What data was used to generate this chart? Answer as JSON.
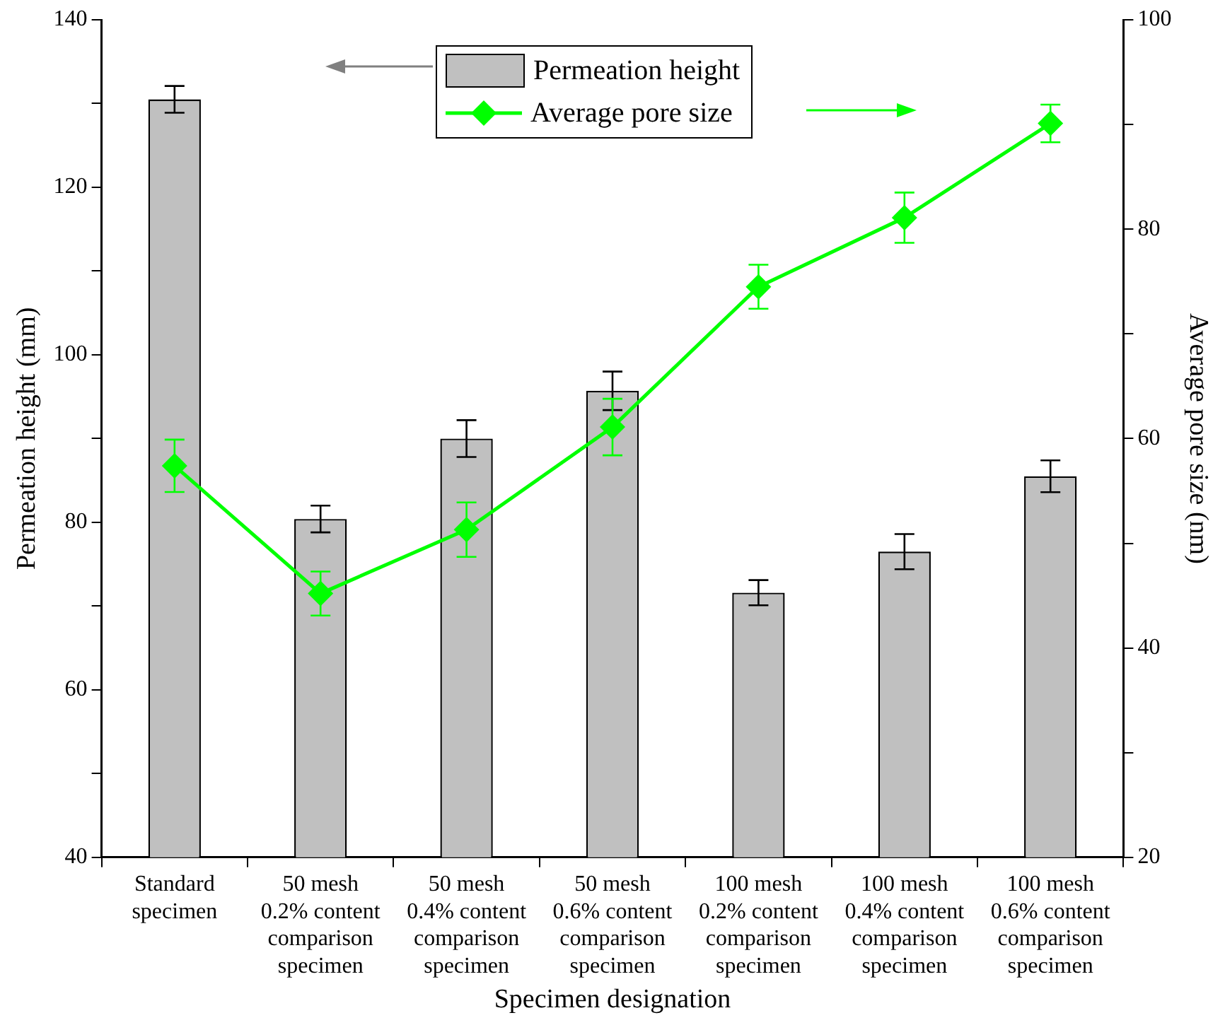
{
  "chart_data": {
    "type": "bar",
    "xlabel": "Specimen designation",
    "ylabel": "Permeation height (mm)",
    "y2label": "Average pore size (nm)",
    "categories": [
      "Standard\nspecimen",
      "50 mesh\n0.2% content\ncomparison\nspecimen",
      "50 mesh\n0.4% content\ncomparison\nspecimen",
      "50 mesh\n0.6% content\ncomparison\nspecimen",
      "100 mesh\n0.2% content\ncomparison\nspecimen",
      "100 mesh\n0.4% content\ncomparison\nspecimen",
      "100 mesh\n0.6% content\ncomparison\nspecimen"
    ],
    "series": [
      {
        "name": "Permeation height",
        "color": "#c0c0c0",
        "values": [
          130.5,
          80.4,
          90.0,
          95.7,
          71.6,
          76.5,
          85.5
        ],
        "errors": [
          1.6,
          1.6,
          2.2,
          2.3,
          1.5,
          2.1,
          1.9
        ]
      },
      {
        "name": "Average pore size",
        "type": "line",
        "axis": "y2",
        "color": "#00ff00",
        "marker": "diamond",
        "values": [
          57.4,
          45.2,
          51.3,
          61.1,
          74.5,
          81.1,
          90.1
        ],
        "errors": [
          2.5,
          2.1,
          2.6,
          2.7,
          2.1,
          2.4,
          1.8
        ]
      }
    ],
    "ylim": [
      40,
      140
    ],
    "yticks": [
      40,
      {
        "value": 50,
        "label": null
      },
      60,
      {
        "value": 70,
        "label": null
      },
      80,
      {
        "value": 90,
        "label": null
      },
      100,
      {
        "value": 110,
        "label": null
      },
      120,
      {
        "value": 130,
        "label": null
      },
      140
    ],
    "y2lim": [
      20,
      100
    ],
    "y2ticks": [
      20,
      {
        "value": 30,
        "label": null
      },
      40,
      {
        "value": 50,
        "label": null
      },
      60,
      {
        "value": 70,
        "label": null
      },
      80,
      {
        "value": 90,
        "label": null
      },
      100
    ],
    "legend": "top",
    "grid": false
  }
}
